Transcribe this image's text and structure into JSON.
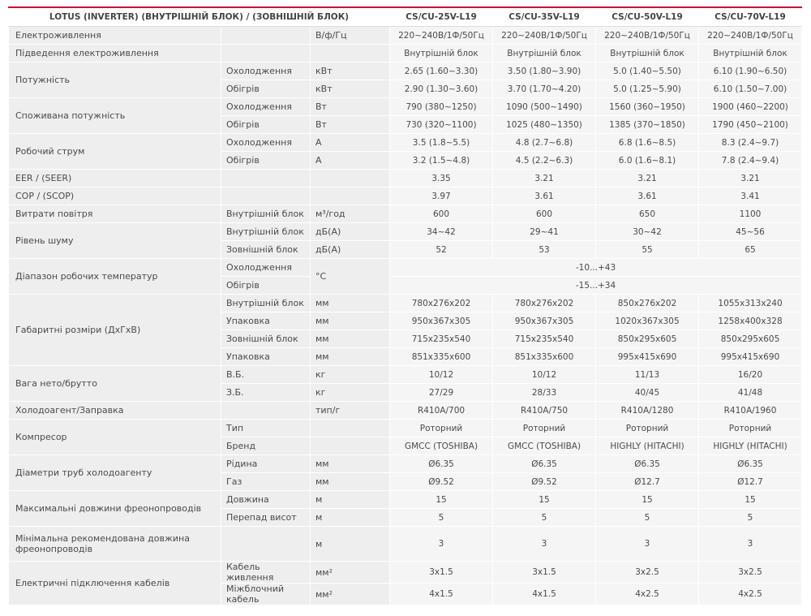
{
  "header": {
    "title": "LOTUS (INVERTER) (ВНУТРІШНІЙ БЛОК) / (ЗОВНІШНІЙ БЛОК)",
    "models": [
      "CS/CU-25V-L19",
      "CS/CU-35V-L19",
      "CS/CU-50V-L19",
      "CS/CU-70V-L19"
    ]
  },
  "groups": [
    {
      "label": "Електроживлення",
      "rows": [
        {
          "unit": "В/ф/Гц",
          "values": [
            "220~240В/1Ф/50Гц",
            "220~240В/1Ф/50Гц",
            "220~240В/1Ф/50Гц",
            "220~240В/1Ф/50Гц"
          ]
        }
      ]
    },
    {
      "label": "Підведення електроживлення",
      "rows": [
        {
          "values": [
            "Внутрішній блок",
            "Внутрішній блок",
            "Внутрішній блок",
            "Внутрішній блок"
          ]
        }
      ]
    },
    {
      "label": "Потужність",
      "rows": [
        {
          "sub": "Охолодження",
          "unit": "кВт",
          "values": [
            "2.65 (1.60~3.30)",
            "3.50 (1.80~3.90)",
            "5.0 (1.40~5.50)",
            "6.10 (1.90~6.50)"
          ]
        },
        {
          "sub": "Обігрів",
          "unit": "кВт",
          "values": [
            "2.90 (1.30~3.60)",
            "3.70 (1.70~4.20)",
            "5.0 (1.25~5.90)",
            "6.10 (1.50~7.00)"
          ]
        }
      ]
    },
    {
      "label": "Споживана потужність",
      "rows": [
        {
          "sub": "Охолодження",
          "unit": "Вт",
          "values": [
            "790 (380~1250)",
            "1090 (500~1490)",
            "1560 (360~1950)",
            "1900 (460~2200)"
          ]
        },
        {
          "sub": "Обігрів",
          "unit": "Вт",
          "values": [
            "730 (320~1100)",
            "1025 (480~1350)",
            "1385 (370~1850)",
            "1790 (450~2100)"
          ]
        }
      ]
    },
    {
      "label": "Робочий струм",
      "rows": [
        {
          "sub": "Охолодження",
          "unit": "А",
          "values": [
            "3.5 (1.8~5.5)",
            "4.8 (2.7~6.8)",
            "6.8 (1.6~8.5)",
            "8.3 (2.4~9.7)"
          ]
        },
        {
          "sub": "Обігрів",
          "unit": "А",
          "values": [
            "3.2 (1.5~4.8)",
            "4.5 (2.2~6.3)",
            "6.0 (1.6~8.1)",
            "7.8 (2.4~9.4)"
          ]
        }
      ]
    },
    {
      "label": "EER / (SEER)",
      "rows": [
        {
          "values": [
            "3.35",
            "3.21",
            "3.21",
            "3.21"
          ]
        }
      ]
    },
    {
      "label": "COP / (SCOP)",
      "rows": [
        {
          "values": [
            "3.97",
            "3.61",
            "3.61",
            "3.41"
          ]
        }
      ]
    },
    {
      "label": "Витрати повітря",
      "rows": [
        {
          "sub": "Внутрішній блок",
          "unit": "м³/год",
          "values": [
            "600",
            "600",
            "650",
            "1100"
          ]
        }
      ]
    },
    {
      "label": "Рівень шуму",
      "rows": [
        {
          "sub": "Внутрішній блок",
          "unit": "дБ(А)",
          "values": [
            "34~42",
            "29~41",
            "30~42",
            "45~56"
          ]
        },
        {
          "sub": "Зовнішній блок",
          "unit": "дБ(А)",
          "values": [
            "52",
            "53",
            "55",
            "65"
          ]
        }
      ]
    },
    {
      "label": "Діапазон робочих температур",
      "unit": "°C",
      "rows": [
        {
          "sub": "Охолодження",
          "value": "-10...+43"
        },
        {
          "sub": "Обігрів",
          "value": "-15...+34"
        }
      ]
    },
    {
      "label": "Габаритні розміри (ДхГхВ)",
      "rows": [
        {
          "sub": "Внутрішній блок",
          "unit": "мм",
          "values": [
            "780x276x202",
            "780x276x202",
            "850x276x202",
            "1055x313x240"
          ]
        },
        {
          "sub": "Упаковка",
          "unit": "мм",
          "values": [
            "950x367x305",
            "950x367x305",
            "1020x367x305",
            "1258x400x328"
          ]
        },
        {
          "sub": "Зовнішній блок",
          "unit": "мм",
          "values": [
            "715x235x540",
            "715x235x540",
            "850x295x605",
            "850x295x605"
          ]
        },
        {
          "sub": "Упаковка",
          "unit": "мм",
          "values": [
            "851x335x600",
            "851x335x600",
            "995x415x690",
            "995x415x690"
          ]
        }
      ]
    },
    {
      "label": "Вага нето/брутто",
      "rows": [
        {
          "sub": "В.Б.",
          "unit": "кг",
          "values": [
            "10/12",
            "10/12",
            "11/13",
            "16/20"
          ]
        },
        {
          "sub": "З.Б.",
          "unit": "кг",
          "values": [
            "27/29",
            "28/33",
            "40/45",
            "41/48"
          ]
        }
      ]
    },
    {
      "label": "Холодоагент/Заправка",
      "rows": [
        {
          "unit": "тип/г",
          "values": [
            "R410A/700",
            "R410A/750",
            "R410A/1280",
            "R410A/1960"
          ]
        }
      ]
    },
    {
      "label": "Компресор",
      "rows": [
        {
          "sub": "Тип",
          "values": [
            "Роторний",
            "Роторний",
            "Роторний",
            "Роторний"
          ]
        },
        {
          "sub": "Бренд",
          "values": [
            "GMCC (TOSHIBA)",
            "GMCC (TOSHIBA)",
            "HIGHLY (HITACHI)",
            "HIGHLY (HITACHI)"
          ]
        }
      ]
    },
    {
      "label": "Діаметри труб холодоагенту",
      "rows": [
        {
          "sub": "Рідина",
          "unit": "мм",
          "values": [
            "Ø6.35",
            "Ø6.35",
            "Ø6.35",
            "Ø6.35"
          ]
        },
        {
          "sub": "Газ",
          "unit": "мм",
          "values": [
            "Ø9.52",
            "Ø9.52",
            "Ø12.7",
            "Ø12.7"
          ]
        }
      ]
    },
    {
      "label": "Максимальні довжини фреонопроводів",
      "rows": [
        {
          "sub": "Довжина",
          "unit": "м",
          "values": [
            "15",
            "15",
            "15",
            "15"
          ]
        },
        {
          "sub": "Перепад висот",
          "unit": "м",
          "values": [
            "5",
            "5",
            "5",
            "5"
          ]
        }
      ]
    },
    {
      "label": "Мінімальна рекомендована довжина фреонопроводів",
      "rows": [
        {
          "unit": "м",
          "values": [
            "3",
            "3",
            "3",
            "3"
          ]
        }
      ]
    },
    {
      "label": "Електричні підключення кабелів",
      "rows": [
        {
          "sub": "Кабель живлення",
          "unit": "мм²",
          "values": [
            "3x1.5",
            "3x1.5",
            "3x2.5",
            "3x2.5"
          ]
        },
        {
          "sub": "Міжблочний кабель",
          "unit": "мм²",
          "values": [
            "4x1.5",
            "4x1.5",
            "4x2.5",
            "4x2.5"
          ]
        }
      ]
    }
  ]
}
